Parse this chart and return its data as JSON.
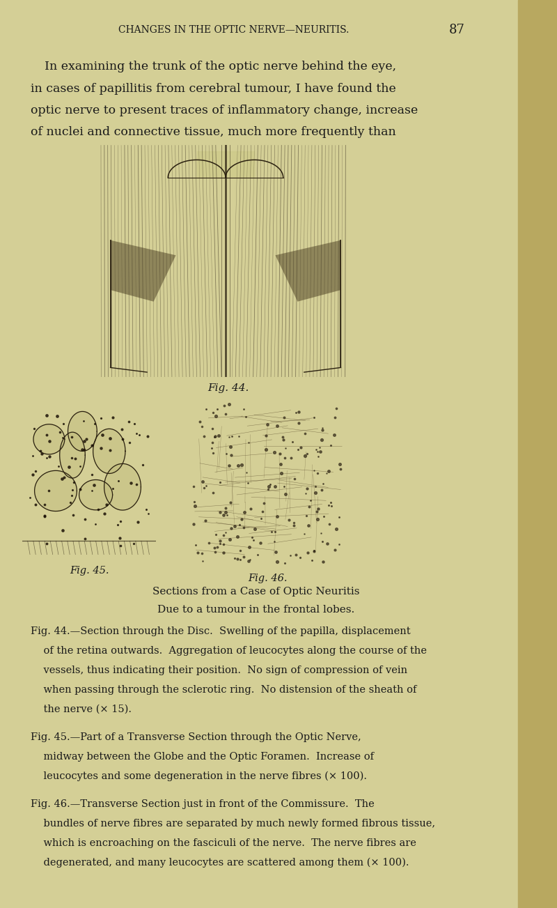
{
  "background_color": "#d4cf96",
  "right_strip_color": "#b8a860",
  "header_text": "CHANGES IN THE OPTIC NERVE—NEURITIS.",
  "header_page_num": "87",
  "body_text_lines": [
    "In examining the trunk of the optic nerve behind the eye,",
    "in cases of papillitis from cerebral tumour, I have found the",
    "optic nerve to present traces of inflammatory change, increase",
    "of nuclei and connective tissue, much more frequently than"
  ],
  "fig44_caption": "Fig. 44.",
  "fig45_label": "Fig. 45.",
  "fig46_label": "Fig. 46.",
  "section_title_line1": "Sections from a Case of Optic Neuritis",
  "section_title_line2": "Due to a tumour in the frontal lobes.",
  "caption44_lines": [
    "Fig. 44.—Section through the Disc.  Swelling of the papilla, displacement",
    "    of the retina outwards.  Aggregation of leucocytes along the course of the",
    "    vessels, thus indicating their position.  No sign of compression of vein",
    "    when passing through the sclerotic ring.  No distension of the sheath of",
    "    the nerve (× 15)."
  ],
  "caption45_lines": [
    "Fig. 45.—Part of a Transverse Section through the Optic Nerve,",
    "    midway between the Globe and the Optic Foramen.  Increase of",
    "    leucocytes and some degeneration in the nerve fibres (× 100)."
  ],
  "caption46_lines": [
    "Fig. 46.—Transverse Section just in front of the Commissure.  The",
    "    bundles of nerve fibres are separated by much newly formed fibrous tissue,",
    "    which is encroaching on the fasciculi of the nerve.  The nerve fibres are",
    "    degenerated, and many leucocytes are scattered among them (× 100)."
  ],
  "text_color": "#1a1a1a",
  "fig44_axes": [
    0.17,
    0.585,
    0.47,
    0.255
  ],
  "fig45_axes": [
    0.04,
    0.385,
    0.24,
    0.175
  ],
  "fig46_axes": [
    0.34,
    0.375,
    0.28,
    0.185
  ]
}
